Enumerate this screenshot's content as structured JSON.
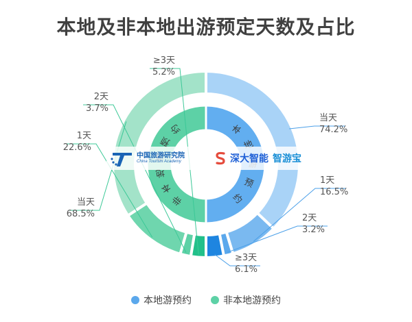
{
  "title": "本地及非本地出游预定天数及占比",
  "colors": {
    "local": [
      "#a9d3f7",
      "#7ab9f0",
      "#5ba8ec",
      "#1e85e0"
    ],
    "local_inner": "#62aef0",
    "nonlocal": [
      "#a3e3c9",
      "#6fd6ae",
      "#5dd1a6",
      "#22c08a"
    ],
    "nonlocal_inner": "#5dd1a6",
    "leader_local": "#4a9fe8",
    "leader_nonlocal": "#3cc897",
    "label_text": "#555555"
  },
  "chart_data": {
    "type": "pie",
    "inner_ring": {
      "series": [
        {
          "name": "本地游预约",
          "value": 50
        },
        {
          "name": "非本地游预约",
          "value": 50
        }
      ]
    },
    "outer_ring": {
      "series": [
        {
          "name": "本地游预约",
          "categories": [
            "当天",
            "1天",
            "2天",
            "≥3天"
          ],
          "percents": [
            "74.2%",
            "16.5%",
            "3.2%",
            "6.1%"
          ],
          "values": [
            74.2,
            16.5,
            3.2,
            6.1
          ]
        },
        {
          "name": "非本地游预约",
          "categories": [
            "当天",
            "1天",
            "2天",
            "≥3天"
          ],
          "percents": [
            "68.5%",
            "22.6%",
            "3.7%",
            "5.2%"
          ],
          "values": [
            68.5,
            22.6,
            3.7,
            5.2
          ]
        }
      ]
    },
    "legend_position": "bottom"
  },
  "legend": [
    {
      "label": "本地游预约"
    },
    {
      "label": "非本地游预约"
    }
  ],
  "watermark": {
    "left_cn": "中国旅游研究院",
    "left_en": "China Tourism Academy",
    "right_b1": "深大智能",
    "right_b2": "智游宝"
  }
}
